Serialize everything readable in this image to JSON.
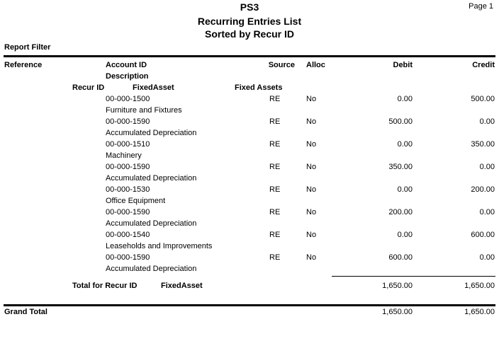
{
  "header": {
    "company": "PS3",
    "title": "Recurring Entries List",
    "subtitle": "Sorted by Recur ID",
    "page": "Page 1",
    "report_filter": "Report Filter"
  },
  "columns": {
    "reference": "Reference",
    "account_id": "Account ID",
    "description": "Description",
    "source": "Source",
    "alloc": "Alloc",
    "debit": "Debit",
    "credit": "Credit"
  },
  "group": {
    "label": "Recur ID",
    "id": "FixedAsset",
    "name": "Fixed Assets"
  },
  "entries": [
    {
      "account": "00-000-1500",
      "description": "Furniture and Fixtures",
      "source": "RE",
      "alloc": "No",
      "debit": "0.00",
      "credit": "500.00"
    },
    {
      "account": "00-000-1590",
      "description": "Accumulated Depreciation",
      "source": "RE",
      "alloc": "No",
      "debit": "500.00",
      "credit": "0.00"
    },
    {
      "account": "00-000-1510",
      "description": "Machinery",
      "source": "RE",
      "alloc": "No",
      "debit": "0.00",
      "credit": "350.00"
    },
    {
      "account": "00-000-1590",
      "description": "Accumulated Depreciation",
      "source": "RE",
      "alloc": "No",
      "debit": "350.00",
      "credit": "0.00"
    },
    {
      "account": "00-000-1530",
      "description": "Office Equipment",
      "source": "RE",
      "alloc": "No",
      "debit": "0.00",
      "credit": "200.00"
    },
    {
      "account": "00-000-1590",
      "description": "Accumulated Depreciation",
      "source": "RE",
      "alloc": "No",
      "debit": "200.00",
      "credit": "0.00"
    },
    {
      "account": "00-000-1540",
      "description": "Leaseholds and Improvements",
      "source": "RE",
      "alloc": "No",
      "debit": "0.00",
      "credit": "600.00"
    },
    {
      "account": "00-000-1590",
      "description": "Accumulated Depreciation",
      "source": "RE",
      "alloc": "No",
      "debit": "600.00",
      "credit": "0.00"
    }
  ],
  "group_total": {
    "label": "Total for Recur ID",
    "id": "FixedAsset",
    "debit": "1,650.00",
    "credit": "1,650.00"
  },
  "grand_total": {
    "label": "Grand Total",
    "debit": "1,650.00",
    "credit": "1,650.00"
  }
}
